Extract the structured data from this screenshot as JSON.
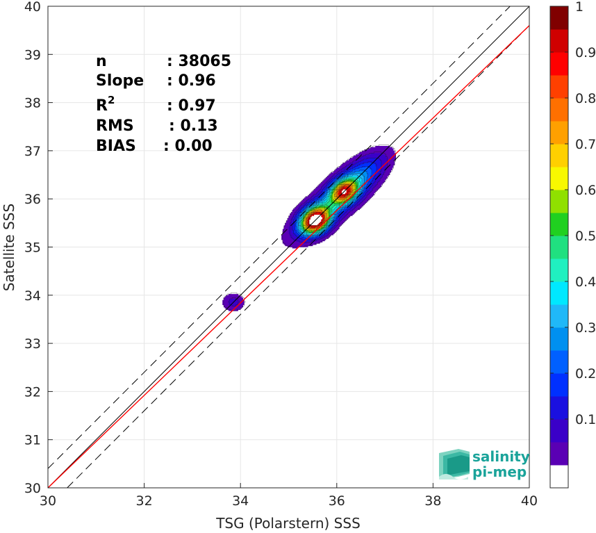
{
  "chart_data": {
    "type": "heatmap",
    "xlabel": "TSG (Polarstern) SSS",
    "ylabel": "Satellite SSS",
    "xlim": [
      30,
      40
    ],
    "ylim": [
      30,
      40
    ],
    "xticks": [
      30,
      32,
      34,
      36,
      38,
      40
    ],
    "yticks": [
      30,
      31,
      32,
      33,
      34,
      35,
      36,
      37,
      38,
      39,
      40
    ],
    "grid": true,
    "stats": [
      {
        "label": "n",
        "value": ": 38065"
      },
      {
        "label": "Slope",
        "value": ": 0.96"
      },
      {
        "label": "R",
        "sup": "2",
        "value": ": 0.97"
      },
      {
        "label": "RMS",
        "value": ": 0.13"
      },
      {
        "label": "BIAS",
        "value": ": 0.00"
      }
    ],
    "lines": {
      "one_to_one": {
        "color": "#000000",
        "offset": 0
      },
      "bounds": {
        "color": "#000000",
        "offsets": [
          0.4,
          -0.4
        ],
        "dash": true
      },
      "regression": {
        "color": "#ff0000",
        "slope": 0.96,
        "intercept_at_x30": 30
      }
    },
    "density_blobs": [
      {
        "cx": 35.55,
        "cy": 35.55,
        "sx": 0.22,
        "sy": 0.17,
        "rot": 35,
        "amp": 0.97
      },
      {
        "cx": 36.15,
        "cy": 36.15,
        "sx": 0.2,
        "sy": 0.15,
        "rot": 35,
        "amp": 0.65
      },
      {
        "cx": 35.9,
        "cy": 35.9,
        "sx": 0.7,
        "sy": 0.23,
        "rot": 40,
        "amp": 0.28
      },
      {
        "cx": 36.45,
        "cy": 36.45,
        "sx": 0.5,
        "sy": 0.22,
        "rot": 40,
        "amp": 0.2
      },
      {
        "cx": 33.85,
        "cy": 33.85,
        "sx": 0.17,
        "sy": 0.14,
        "rot": 0,
        "amp": 0.12
      }
    ],
    "colorbar": {
      "ticks": [
        "0.1",
        "0.2",
        "0.3",
        "0.4",
        "0.5",
        "0.6",
        "0.7",
        "0.8",
        "0.9",
        "1"
      ],
      "levels": [
        0,
        0.05,
        0.1,
        0.15,
        0.2,
        0.25,
        0.3,
        0.35,
        0.4,
        0.45,
        0.5,
        0.55,
        0.6,
        0.65,
        0.7,
        0.75,
        0.8,
        0.85,
        0.9,
        0.95,
        1.0
      ],
      "colors": [
        "#ffffff",
        "#5a00b4",
        "#3a00c8",
        "#1a10e0",
        "#0030ff",
        "#0060ff",
        "#0090f0",
        "#20b8f8",
        "#00e8ff",
        "#20f0c0",
        "#20e080",
        "#20d020",
        "#90e000",
        "#f8f800",
        "#ffd000",
        "#ffa000",
        "#ff7000",
        "#ff4000",
        "#ff0000",
        "#d00000",
        "#800000"
      ]
    }
  },
  "logo": {
    "line1": "salinity",
    "line2": "pi-mep"
  }
}
